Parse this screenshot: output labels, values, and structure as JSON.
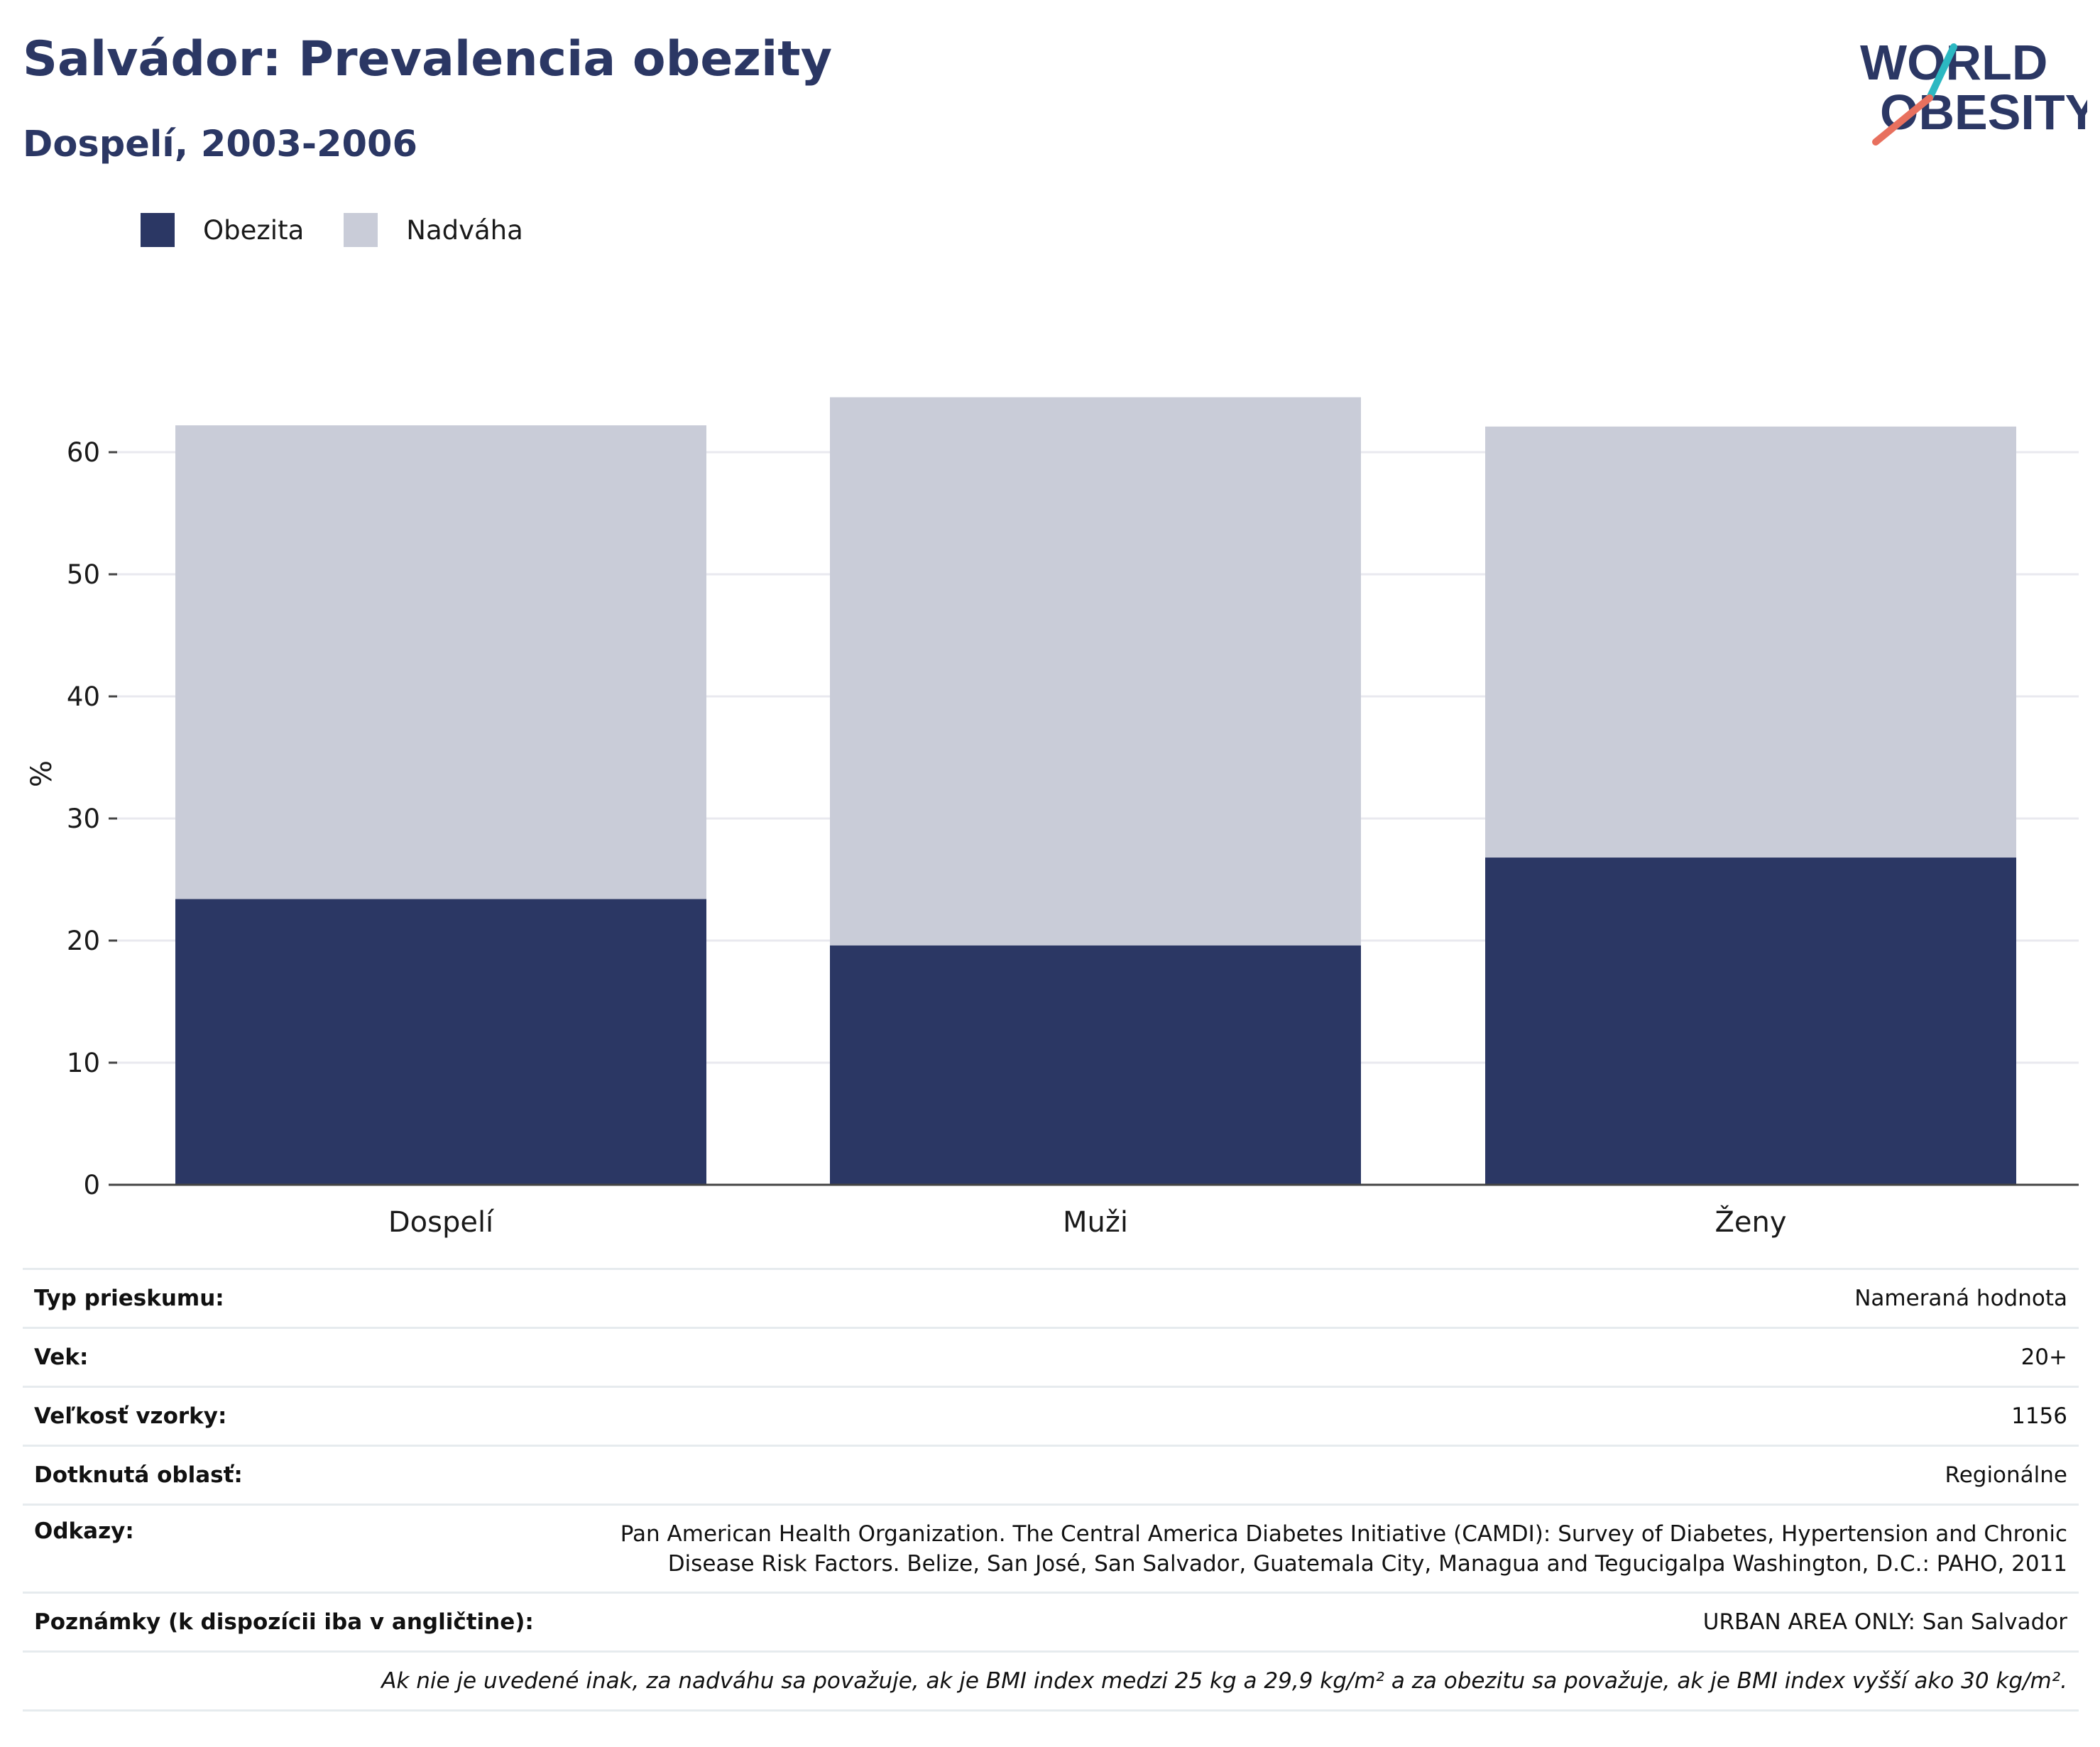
{
  "title": "Salvádor: Prevalencia obezity",
  "subtitle": "Dospelí, 2003-2006",
  "logo": {
    "line1": "WORLD",
    "line2": "OBESITY"
  },
  "legend": {
    "obesity": "Obezita",
    "overweight": "Nadváha"
  },
  "colors": {
    "obesity": "#2b3764",
    "overweight": "#c9ccd8",
    "grid": "#e9e9ef",
    "baseline": "#444444",
    "logo_navy": "#2b3764",
    "logo_teal": "#2cb8c2",
    "logo_coral": "#e8705e"
  },
  "chart_data": {
    "type": "bar",
    "stacked": true,
    "categories": [
      "Dospelí",
      "Muži",
      "Ženy"
    ],
    "series": [
      {
        "name": "Obezita",
        "values": [
          23.4,
          19.6,
          26.8
        ]
      },
      {
        "name": "Nadváha",
        "values": [
          38.8,
          44.9,
          35.3
        ]
      }
    ],
    "ylabel": "%",
    "ylim": [
      0,
      70
    ],
    "yticks": [
      0,
      10,
      20,
      30,
      40,
      50,
      60
    ],
    "grid": true,
    "legend_position": "top-left"
  },
  "info": {
    "survey_type_label": "Typ prieskumu:",
    "survey_type": "Nameraná hodnota",
    "age_label": "Vek:",
    "age": "20+",
    "sample_label": "Veľkosť vzorky:",
    "sample": "1156",
    "area_label": "Dotknutá oblasť:",
    "area": "Regionálne",
    "refs_label": "Odkazy:",
    "refs_line1": "Pan American Health Organization. The Central America Diabetes Initiative (CAMDI): Survey of Diabetes, Hypertension and Chronic",
    "refs_line2": "Disease Risk Factors. Belize, San José, San Salvador, Guatemala City, Managua and Tegucigalpa Washington, D.C.: PAHO, 2011",
    "notes_label": "Poznámky (k dispozícii iba v angličtine):",
    "notes": "URBAN AREA ONLY: San Salvador",
    "footnote": "Ak nie je uvedené inak, za nadváhu sa považuje, ak je BMI index medzi 25 kg a 29,9 kg/m² a za obezitu sa považuje, ak je BMI index vyšší ako 30 kg/m²."
  }
}
